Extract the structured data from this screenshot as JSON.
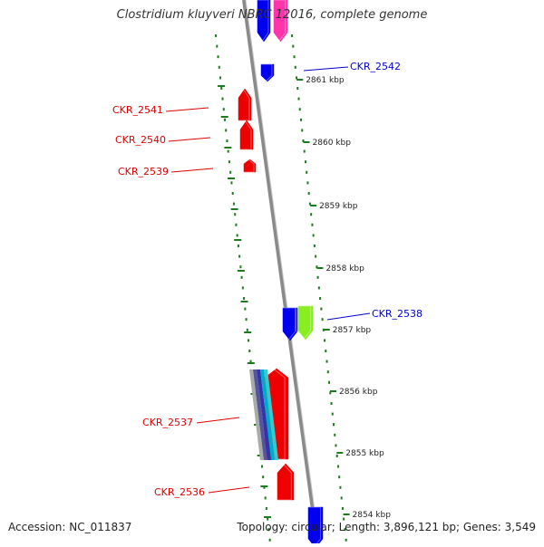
{
  "title": "Clostridium kluyveri NBRC 12016, complete genome",
  "footer": {
    "accession": "Accession: NC_011837",
    "summary": "Topology: circular; Length: 3,896,121 bp; Genes: 3,549"
  },
  "colors": {
    "background": "#ffffff",
    "backbone": "#8a8a8a",
    "tick": "#1e7a1e",
    "minus_label": "#dd0000",
    "plus_label": "#0000cc"
  },
  "scale": {
    "unit": "kbp",
    "ticks": [
      {
        "label": "2861 kbp"
      },
      {
        "label": "2860 kbp"
      },
      {
        "label": "2859 kbp"
      },
      {
        "label": "2858 kbp"
      },
      {
        "label": "2857 kbp"
      },
      {
        "label": "2856 kbp"
      },
      {
        "label": "2855 kbp"
      },
      {
        "label": "2854 kbp"
      }
    ]
  },
  "genes": [
    {
      "label": "CKR_2542",
      "strand": "plus",
      "color": "#0000ee"
    },
    {
      "label": "CKR_2541",
      "strand": "minus",
      "color": "#ee0000"
    },
    {
      "label": "CKR_2540",
      "strand": "minus",
      "color": "#ee0000"
    },
    {
      "label": "CKR_2539",
      "strand": "minus",
      "color": "#ee0000"
    },
    {
      "label": "CKR_2538",
      "strand": "plus",
      "color": "#0000ee"
    },
    {
      "label": "CKR_2537",
      "strand": "minus",
      "color": "#ee0000"
    },
    {
      "label": "CKR_2536",
      "strand": "minus",
      "color": "#ee0000"
    }
  ],
  "unlabeled_features": [
    {
      "name": "top-blue-feature",
      "color": "#0000ee"
    },
    {
      "name": "top-magenta-feature",
      "color": "#ff33aa"
    },
    {
      "name": "lime-feature",
      "color": "#88ee22"
    },
    {
      "name": "multicolor-band",
      "colors": [
        "#aaaaaa",
        "#555599",
        "#3333aa",
        "#00aacc",
        "#33cccc"
      ]
    },
    {
      "name": "bottom-blue-feature",
      "color": "#0000ee"
    }
  ]
}
